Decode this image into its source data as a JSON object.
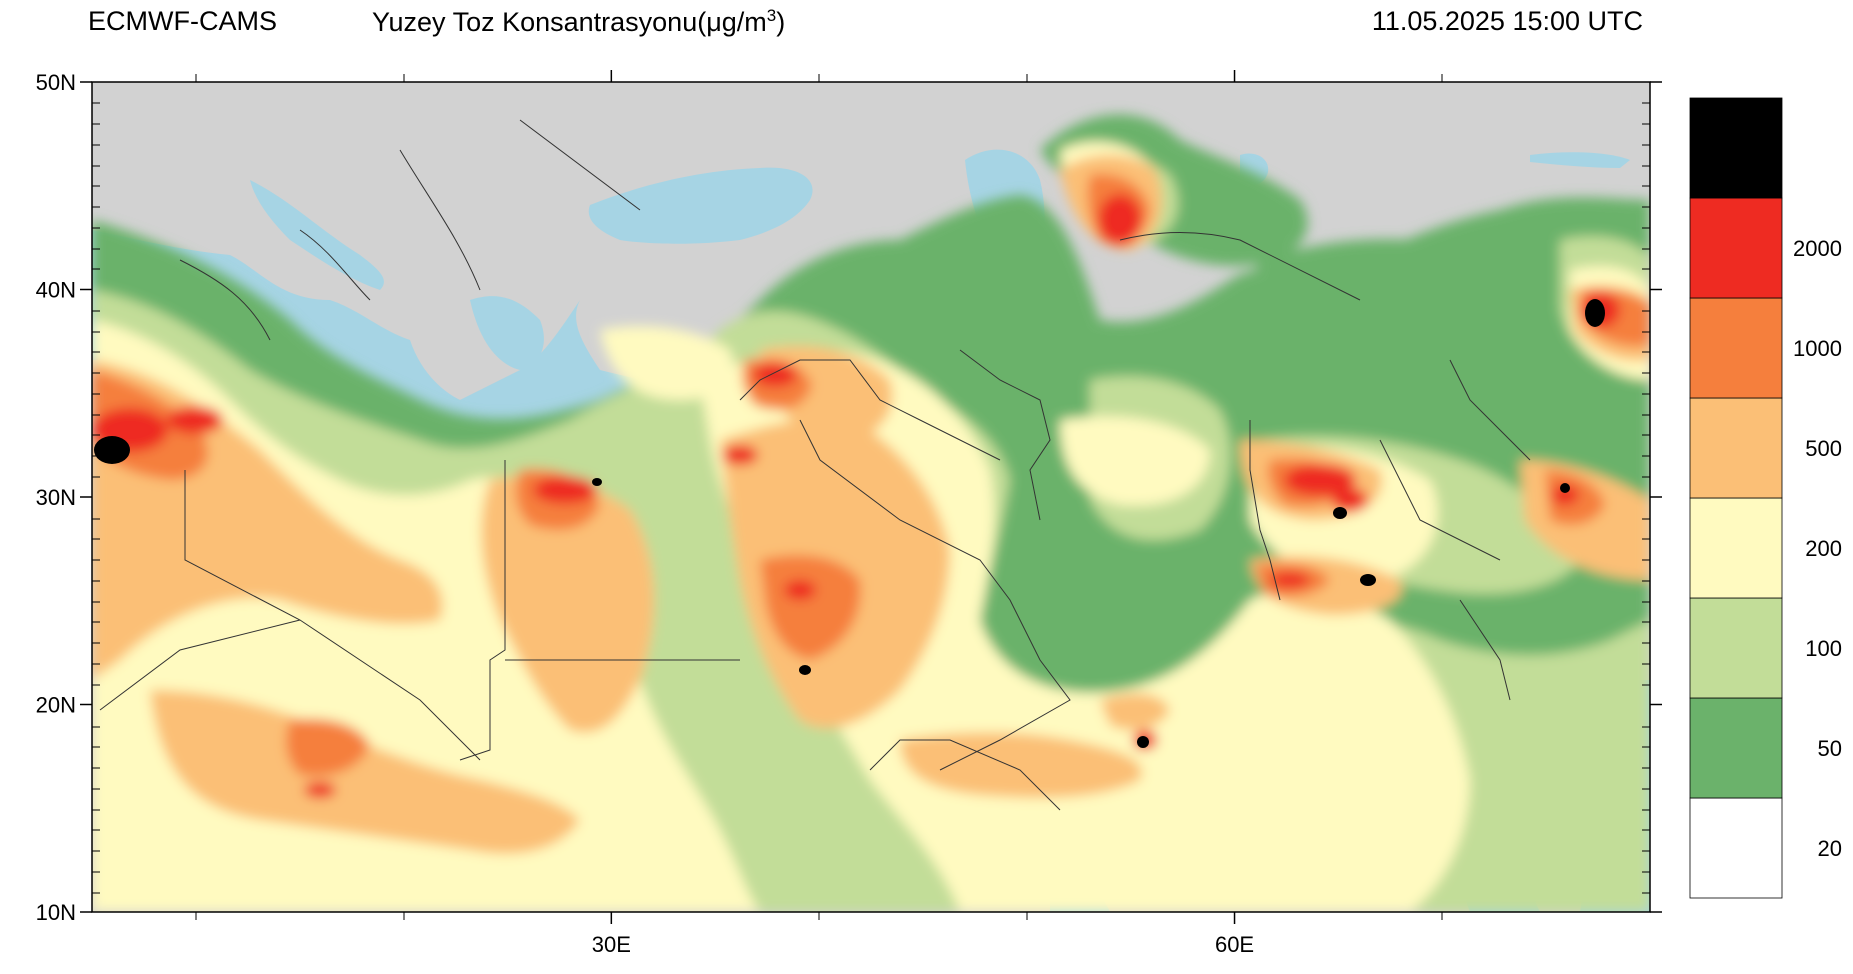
{
  "header": {
    "source": "ECMWF-CAMS",
    "variable_text": "Yuzey Toz Konsantrasyonu(μg/m",
    "variable_sup": "3",
    "variable_close": ")",
    "valid_time": "11.05.2025 15:00 UTC"
  },
  "axes": {
    "lat_ticks": [
      {
        "value": 50,
        "label": "50N"
      },
      {
        "value": 40,
        "label": "40N"
      },
      {
        "value": 30,
        "label": "30N"
      },
      {
        "value": 20,
        "label": "20N"
      },
      {
        "value": 10,
        "label": "10N"
      }
    ],
    "lon_ticks": [
      {
        "value": 30,
        "label": "30E"
      },
      {
        "value": 60,
        "label": "60E"
      }
    ],
    "lon_range": [
      5,
      80
    ],
    "lat_range": [
      10,
      50
    ]
  },
  "colorbar": {
    "bins": [
      {
        "color": "#ffffff",
        "label": "20"
      },
      {
        "color": "#6bb26b",
        "label": "50"
      },
      {
        "color": "#c2dd98",
        "label": "100"
      },
      {
        "color": "#fffac0",
        "label": "200"
      },
      {
        "color": "#fbbf76",
        "label": "500"
      },
      {
        "color": "#f57f3d",
        "label": "1000"
      },
      {
        "color": "#ee2b22",
        "label": "2000"
      },
      {
        "color": "#000000",
        "label": ""
      }
    ]
  },
  "colors": {
    "land_no_data": "#d2d2d2",
    "sea": "#a6d4e4",
    "border": "#333333"
  }
}
